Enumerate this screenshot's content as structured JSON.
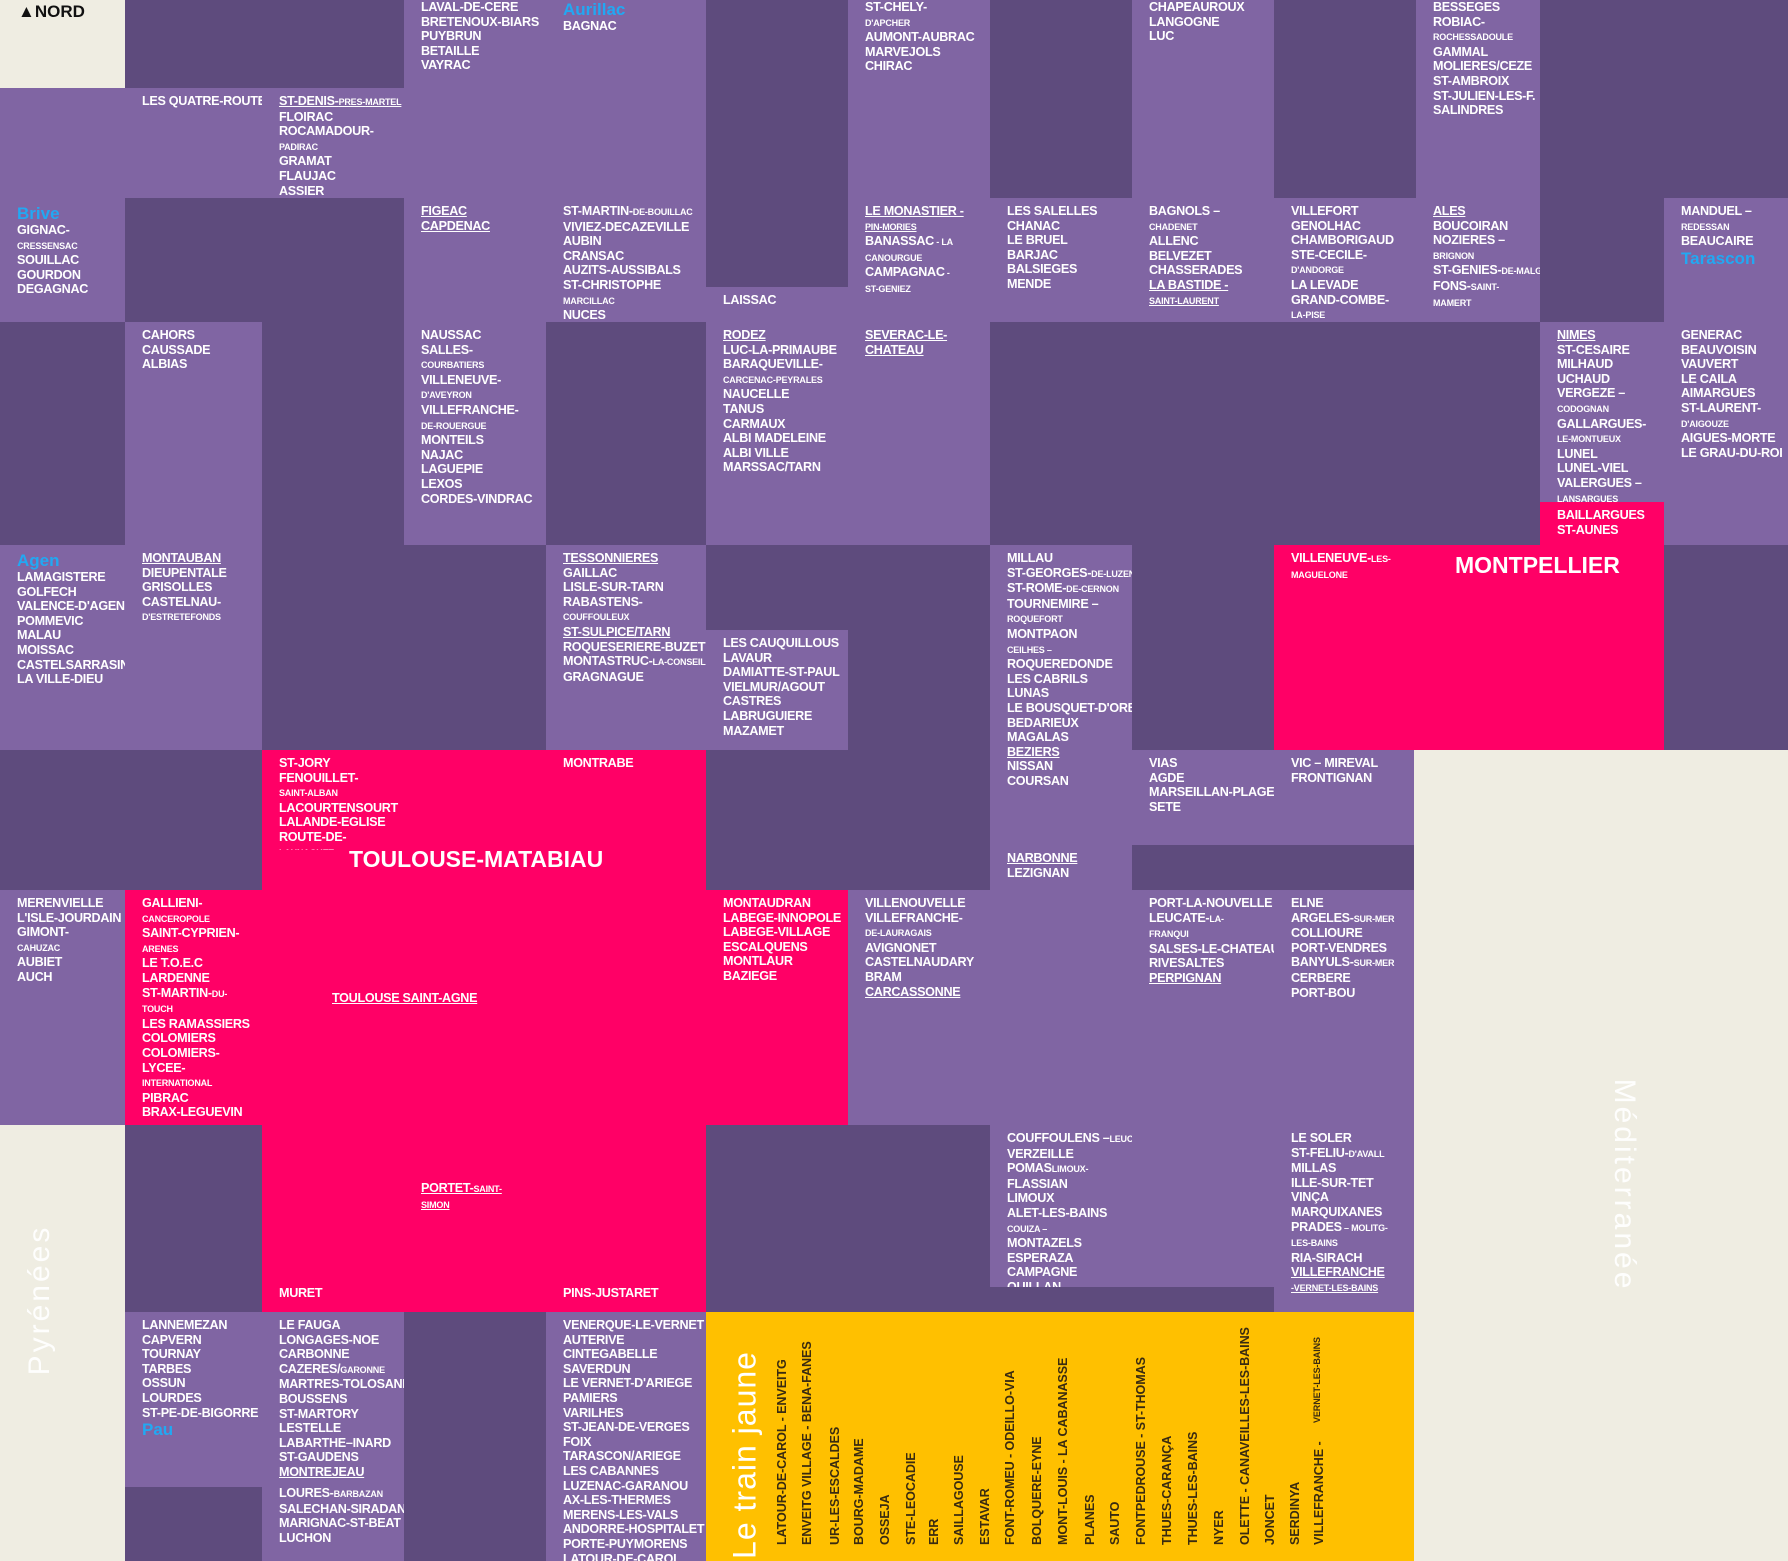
{
  "compass": "▲NORD",
  "seas": {
    "pyrenees": "Pyrénées",
    "mediterranee": "Méditerranée"
  },
  "colors": {
    "dark": "#5e4b7d",
    "light": "#8065a3",
    "pink": "#ff0066",
    "yellow": "#ffc000",
    "cream": "#efede2",
    "city_blue": "#22a8f2"
  },
  "cells": {
    "laval": [
      "LAVAL-DE-CERE",
      "BRETENOUX-BIARS",
      "PUYBRUN",
      "BETAILLE",
      "VAYRAC"
    ],
    "aurillac": [
      "Aurillac",
      "BAGNAC"
    ],
    "stchely": [
      "ST-CHELY-",
      "D'APCHER",
      "AUMONT-AUBRAC",
      "MARVEJOLS",
      "CHIRAC"
    ],
    "chapeauroux": [
      "CHAPEAUROUX",
      "LANGOGNE",
      "LUC"
    ],
    "besseges": [
      "BESSEGES",
      "ROBIAC-",
      "ROCHESSADOULE",
      "GAMMAL",
      "MOLIERES/CEZE",
      "ST-AMBROIX",
      "ST-JULIEN-LES-F.",
      "SALINDRES"
    ],
    "quatre": [
      "LES QUATRE-ROUTES"
    ],
    "stdenis": [
      "ST-DENIS-",
      "PRES-",
      "MARTEL",
      "FLOIRAC",
      "ROCAMADOUR-",
      "PADIRAC",
      "GRAMAT",
      "FLAUJAC",
      "ASSIER"
    ],
    "brive": [
      "Brive",
      "GIGNAC-",
      "CRESSENSAC",
      "SOUILLAC",
      "GOURDON",
      "DEGAGNAC"
    ],
    "figeac": [
      "FIGEAC",
      "CAPDENAC"
    ],
    "stmartin": [
      "ST-MARTIN-",
      "DE-",
      "BOUILLAC",
      "VIVIEZ-DECAZEVILLE",
      "AUBIN",
      "CRANSAC",
      "AUZITS-AUSSIBALS",
      "ST-CHRISTOPHE",
      "MARCILLAC",
      "NUCES"
    ],
    "laissac": [
      "LAISSAC"
    ],
    "monastier": [
      "LE MONASTIER -",
      "PIN-MORIES",
      "BANASSAC",
      " - LA",
      "CANOURGUE",
      "CAMPAGNAC",
      " -",
      "ST-GENIEZ"
    ],
    "salelles": [
      "LES SALELLES",
      "CHANAC",
      "LE BRUEL",
      "BARJAC",
      "BALSIEGES",
      "MENDE"
    ],
    "bagnols": [
      "BAGNOLS –",
      "CHADENET",
      "ALLENC",
      "BELVEZET",
      "CHASSERADES",
      "LA BASTIDE -",
      "SAINT-LAURENT"
    ],
    "villefort": [
      "VILLEFORT",
      "GENOLHAC",
      "CHAMBORIGAUD",
      "STE-CECILE-",
      "D'ANDORGE",
      "LA LEVADE",
      "GRAND-COMBE-",
      "LA-PISE"
    ],
    "ales": [
      "ALES",
      "BOUCOIRAN",
      "NOZIERES –",
      "BRIGNON",
      "ST-GENIES-",
      "DE-",
      "MALGOIRE",
      "FONS-",
      "SAINT-",
      "MAMERT"
    ],
    "manduel": [
      "MANDUEL –",
      "REDESSAN",
      "BEAUCAIRE",
      "Tarascon"
    ],
    "cahors": [
      "CAHORS",
      "CAUSSADE",
      "ALBIAS"
    ],
    "naussac": [
      "NAUSSAC",
      "SALLES-",
      "COURBATIERS",
      "VILLENEUVE-",
      "D'AVEYRON",
      "VILLEFRANCHE-",
      "DE-ROUERGUE",
      "MONTEILS",
      "NAJAC",
      "LAGUEPIE",
      "LEXOS",
      "CORDES-VINDRAC"
    ],
    "rodez": [
      "RODEZ",
      "LUC-LA-PRIMAUBE",
      "BARAQUEVILLE-",
      "CARCENAC-PEYRALES",
      "NAUCELLE",
      "TANUS",
      "CARMAUX",
      "ALBI MADELEINE",
      "ALBI VILLE",
      "MARSSAC/TARN"
    ],
    "severac": [
      "SEVERAC-LE-",
      "CHATEAU"
    ],
    "nimes": [
      "NIMES",
      "ST-CESAIRE",
      "MILHAUD",
      "UCHAUD",
      "VERGEZE –",
      "CODOGNAN",
      "GALLARGUES-",
      "LE-MONTUEUX",
      "LUNEL",
      "LUNEL-VIEL",
      "VALERGUES –",
      "LANSARGUES"
    ],
    "generac": [
      "GENERAC",
      "BEAUVOISIN",
      "VAUVERT",
      "LE CAILA",
      "AIMARGUES",
      "ST-LAURENT-",
      "D'AIGOUZE",
      "AIGUES-MORTE",
      "LE GRAU-DU-ROI"
    ],
    "baillargues": [
      "BAILLARGUES",
      "ST-AUNES"
    ],
    "agen": [
      "Agen",
      "LAMAGISTERE",
      "GOLFECH",
      "VALENCE-D'AGEN",
      "POMMEVIC",
      "MALAU",
      "MOISSAC",
      "CASTELSARRASIN",
      "LA VILLE-DIEU"
    ],
    "montauban": [
      "MONTAUBAN",
      "DIEUPENTALE",
      "GRISOLLES",
      "CASTELNAU-",
      "D'ESTRETEFONDS"
    ],
    "tessonnieres": [
      "TESSONNIERES",
      "GAILLAC",
      "LISLE-SUR-TARN",
      "RABASTENS-",
      "COUFFOULEUX",
      "ST-SULPICE/TARN",
      "ROQUESERIERE-BUZET",
      "MONTASTRUC-",
      "LA-",
      "CONSEILLERE",
      "GRAGNAGUE"
    ],
    "cauquillous": [
      "LES CAUQUILLOUS",
      "LAVAUR",
      "DAMIATTE-ST-PAUL",
      "VIELMUR/AGOUT",
      "CASTRES",
      "LABRUGUIERE",
      "MAZAMET"
    ],
    "millau": [
      "MILLAU",
      "ST-GEORGES-",
      "DE-",
      "LUZENÇON",
      "ST-ROME-",
      "DE-",
      "CERNON",
      "TOURNEMIRE –",
      "ROQUEFORT",
      "MONTPAON",
      "CEILHES –",
      "ROQUEREDONDE",
      "LES CABRILS",
      "LUNAS",
      "LE BOUSQUET-D'ORB",
      "BEDARIEUX",
      "MAGALAS",
      "BEZIERS",
      "NISSAN",
      "COURSAN"
    ],
    "villeneuve": [
      "VILLENEUVE-",
      "LES-",
      "MAGUELONE"
    ],
    "montpellier": [
      "MONTPELLIER"
    ],
    "stjory": [
      "ST-JORY",
      "FENOUILLET-",
      "SAINT-ALBAN",
      "LACOURTENSOURT",
      "LALANDE-EGLISE",
      "ROUTE-DE-",
      "LAUNAGUET"
    ],
    "toulouse": [
      "TOULOUSE-MATABIAU"
    ],
    "montrabe": [
      "MONTRABE"
    ],
    "vias": [
      "VIAS",
      "AGDE",
      "MARSEILLAN-PLAGE",
      "SETE"
    ],
    "vic": [
      "VIC – MIREVAL",
      "FRONTIGNAN"
    ],
    "narbonne": [
      "NARBONNE",
      "LEZIGNAN"
    ],
    "merenvielle": [
      "MERENVIELLE",
      "L'ISLE-JOURDAIN",
      "GIMONT-",
      "CAHUZAC",
      "AUBIET",
      "AUCH"
    ],
    "gallieni": [
      "GALLIENI-",
      "CANCEROPOLE",
      "SAINT-CYPRIEN-",
      "ARENES",
      "LE T.O.E.C",
      "LARDENNE",
      "ST-MARTIN-",
      "DU-",
      "TOUCH",
      "LES RAMASSIERS",
      "COLOMIERS",
      "COLOMIERS-",
      "LYCEE-",
      "INTERNATIONAL",
      "PIBRAC",
      "BRAX-LEGUEVIN"
    ],
    "saintagne": [
      "TOULOUSE SAINT-AGNE"
    ],
    "montaudran": [
      "MONTAUDRAN",
      "LABEGE-INNOPOLE",
      "LABEGE-VILLAGE",
      "ESCALQUENS",
      "MONTLAUR",
      "BAZIEGE"
    ],
    "villenouvelle": [
      "VILLENOUVELLE",
      "VILLEFRANCHE-",
      "DE-LAURAGAIS",
      "AVIGNONET",
      "CASTELNAUDARY",
      "BRAM",
      "CARCASSONNE"
    ],
    "portla": [
      "PORT-LA-NOUVELLE",
      "LEUCATE-",
      "LA-",
      "FRANQUI",
      "SALSES-LE-CHATEAU",
      "RIVESALTES",
      "PERPIGNAN"
    ],
    "elne": [
      "ELNE",
      "ARGELES-",
      "SUR-MER",
      "COLLIOURE",
      "PORT-VENDRES",
      "BANYULS-",
      "SUR-MER",
      "CERBERE",
      "PORT-BOU"
    ],
    "portet": [
      "PORTET-",
      "SAINT-",
      "SIMON"
    ],
    "muret": [
      "MURET"
    ],
    "pins": [
      "PINS-JUSTARET"
    ],
    "couffoulens": [
      "COUFFOULENS –",
      "LEUC",
      "VERZEILLE",
      "POMAS",
      "LIMOUX-",
      "FLASSIAN",
      "LIMOUX",
      "ALET-LES-BAINS",
      "COUIZA –",
      "MONTAZELS",
      "ESPERAZA",
      "CAMPAGNE",
      "QUILLAN"
    ],
    "lesoler": [
      "LE SOLER",
      "ST-FELIU-",
      "D'AVALL",
      "MILLAS",
      "ILLE-SUR-TET",
      "VINÇA",
      "MARQUIXANES",
      "PRADES",
      " – MOLITG-",
      "LES-BAINS",
      "RIA-SIRACH",
      "VILLEFRANCHE",
      "-VERNET-LES-BAINS"
    ],
    "lannemezan": [
      "LANNEMEZAN",
      "CAPVERN",
      "TOURNAY",
      "TARBES",
      "OSSUN",
      "LOURDES",
      "ST-PE-DE-BIGORRE",
      "Pau"
    ],
    "lefauga": [
      "LE FAUGA",
      "LONGAGES-NOE",
      "CARBONNE",
      "CAZERES/",
      "GARONNE",
      "MARTRES-TOLOSANE",
      "BOUSSENS",
      "ST-MARTORY",
      "LESTELLE",
      "LABARTHE–INARD",
      "ST-GAUDENS",
      "MONTREJEAU"
    ],
    "loures": [
      "LOURES-",
      "BARBAZAN",
      "SALECHAN-SIRADAN",
      "MARIGNAC-ST-BEAT",
      "LUCHON"
    ],
    "venerque": [
      "VENERQUE-LE-VERNET",
      "AUTERIVE",
      "CINTEGABELLE",
      "SAVERDUN",
      "LE VERNET-D'ARIEGE",
      "PAMIERS",
      "VARILHES",
      "ST-JEAN-DE-VERGES",
      "FOIX",
      "TARASCON/ARIEGE",
      "LES CABANNES",
      "LUZENAC-GARANOU",
      "AX-LES-THERMES",
      "MERENS-LES-VALS",
      "ANDORRE-HOSPITALET",
      "PORTE-PUYMORENS",
      "LATOUR-DE-CAROL"
    ]
  },
  "train_jaune": {
    "title": "Le train jaune",
    "stations": [
      "LATOUR-DE-CAROL - ENVEITG",
      "ENVEITG VILLAGE - BENA-FANES",
      "UR-LES-ESCALDES",
      "BOURG-MADAME",
      "OSSEJA",
      "STE-LEOCADIE",
      "ERR",
      "SAILLAGOUSE",
      "ESTAVAR",
      "FONT-ROMEU - ODEILLO-VIA",
      "BOLQUERE-EYNE",
      "MONT-LOUIS - LA CABANASSE",
      "PLANES",
      "SAUTO",
      "FONTPEDROUSE - ST-THOMAS",
      "THUES-CARANÇA",
      "THUES-LES-BAINS",
      "NYER",
      "OLETTE - CANAVEILLES-LES-BAINS",
      "JONCET",
      "SERDINYA",
      "VILLEFRANCHE - ",
      "VERNET-LES-BAINS"
    ]
  }
}
